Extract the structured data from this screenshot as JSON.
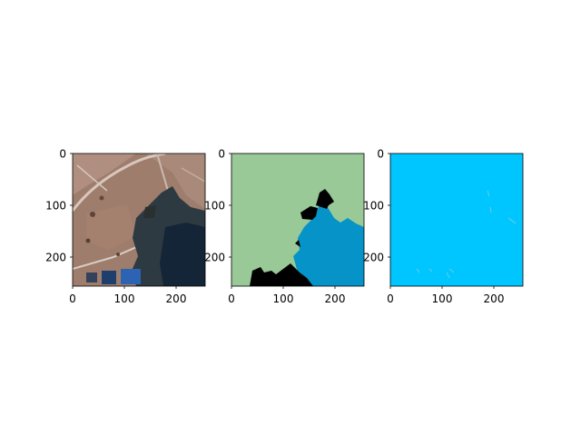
{
  "figure": {
    "background": "#ffffff",
    "panels": [
      {
        "id": "satellite-image",
        "content": "aerial-photo",
        "xticks": [
          "0",
          "100",
          "200"
        ],
        "yticks": [
          "0",
          "100",
          "200"
        ]
      },
      {
        "id": "segmentation-mask",
        "content": "class-map",
        "colors": {
          "land": "#98c996",
          "water": "#0593c8",
          "unlabeled": "#000000"
        },
        "xticks": [
          "0",
          "100",
          "200"
        ],
        "yticks": [
          "0",
          "100",
          "200"
        ]
      },
      {
        "id": "prediction-mask",
        "content": "class-map",
        "colors": {
          "background": "#00c6ff",
          "speckle": "#88cce0"
        },
        "xticks": [
          "0",
          "100",
          "200"
        ],
        "yticks": [
          "0",
          "100",
          "200"
        ]
      }
    ]
  }
}
